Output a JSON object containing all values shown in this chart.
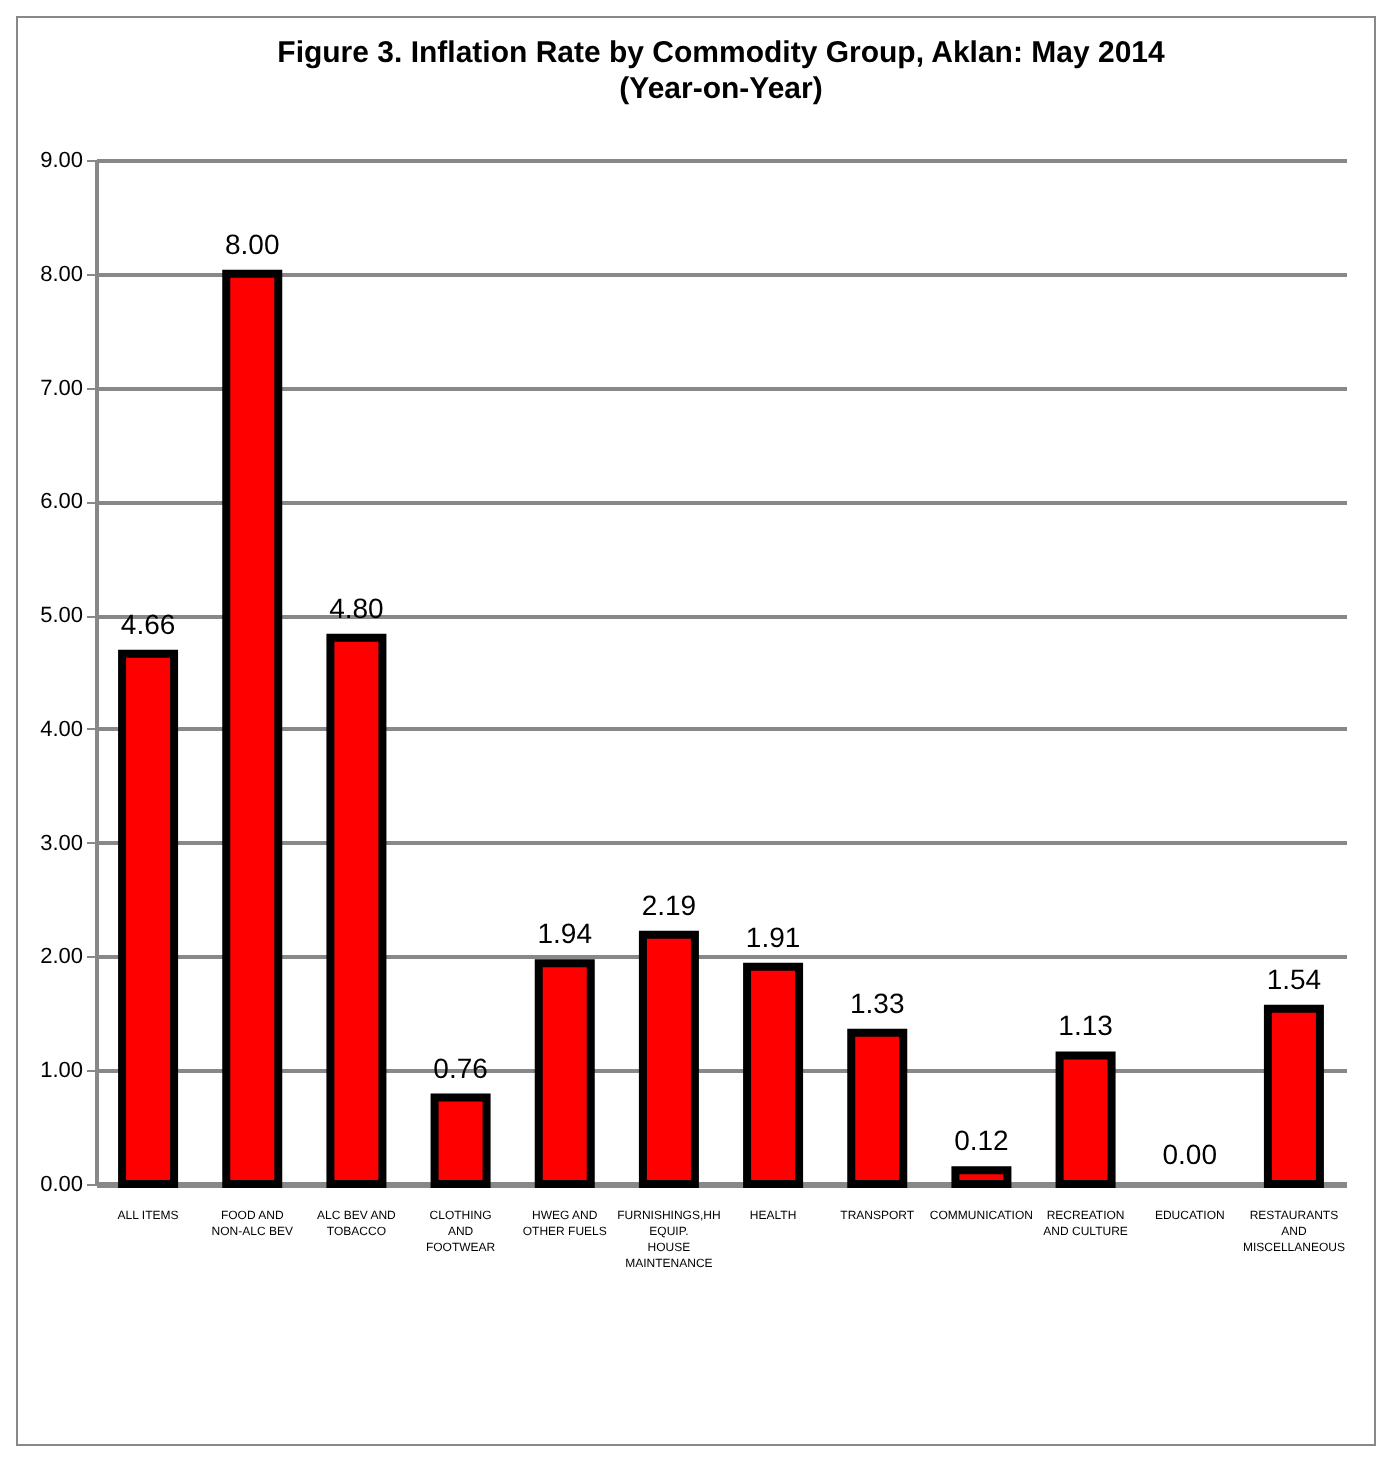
{
  "chart_data": {
    "type": "bar",
    "title": "Figure 3. Inflation Rate by Commodity Group, Aklan: May 2014",
    "subtitle": "(Year-on-Year)",
    "categories": [
      "ALL ITEMS",
      "FOOD AND NON-ALC BEV",
      "ALC BEV AND TOBACCO",
      "CLOTHING AND FOOTWEAR",
      "HWEG AND OTHER FUELS",
      "FURNISHINGS,HH EQUIP. HOUSE MAINTENANCE",
      "HEALTH",
      "TRANSPORT",
      "COMMUNICATION",
      "RECREATION AND CULTURE",
      "EDUCATION",
      "RESTAURANTS AND MISCELLANEOUS"
    ],
    "values": [
      4.66,
      8.0,
      4.8,
      0.76,
      1.94,
      2.19,
      1.91,
      1.33,
      0.12,
      1.13,
      0.0,
      1.54
    ],
    "value_labels": [
      "4.66",
      "8.00",
      "4.80",
      "0.76",
      "1.94",
      "2.19",
      "1.91",
      "1.33",
      "0.12",
      "1.13",
      "0.00",
      "1.54"
    ],
    "color": "#ff0000",
    "ylim": [
      0,
      9
    ],
    "yticks": [
      {
        "value": 0,
        "label": "0.00"
      },
      {
        "value": 1,
        "label": "1.00"
      },
      {
        "value": 2,
        "label": "2.00"
      },
      {
        "value": 3,
        "label": "3.00"
      },
      {
        "value": 4,
        "label": "4.00"
      },
      {
        "value": 5,
        "label": "5.00"
      },
      {
        "value": 6,
        "label": "6.00"
      },
      {
        "value": 7,
        "label": "7.00"
      },
      {
        "value": 8,
        "label": "8.00"
      },
      {
        "value": 9,
        "label": "9.00"
      }
    ],
    "grid": "y"
  }
}
